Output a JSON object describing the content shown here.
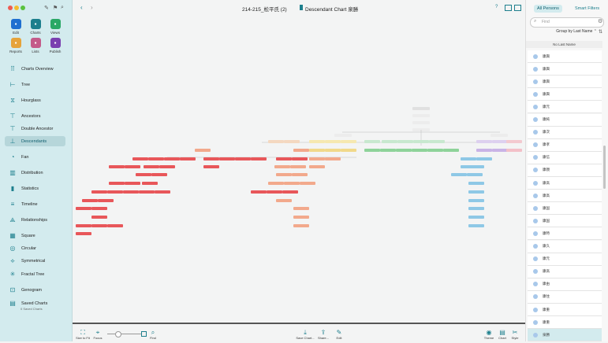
{
  "window": {
    "title": "214-215_松平氏 (2)",
    "chart_title": "Descendant Chart 泉勝"
  },
  "toolbar": [
    {
      "label": "Edit",
      "icon": "pencil-icon",
      "color": "#1f6fd0"
    },
    {
      "label": "Charts",
      "icon": "charts-icon",
      "color": "#1d7f8d"
    },
    {
      "label": "Views",
      "icon": "eye-icon",
      "color": "#2aa866"
    },
    {
      "label": "Reports",
      "icon": "reports-icon",
      "color": "#e6a33a"
    },
    {
      "label": "Lists",
      "icon": "lists-icon",
      "color": "#c45b8a"
    },
    {
      "label": "Publish",
      "icon": "publish-icon",
      "color": "#7a3fb0"
    }
  ],
  "nav": [
    {
      "label": "Charts Overview",
      "icon": "grid-icon"
    },
    {
      "label": "Tree",
      "icon": "tree-icon"
    },
    {
      "label": "Hourglass",
      "icon": "hourglass-icon"
    },
    {
      "label": "Ancestors",
      "icon": "ancestors-icon"
    },
    {
      "label": "Double Ancestor",
      "icon": "double-ancestor-icon"
    },
    {
      "label": "Descendants",
      "icon": "descendants-icon",
      "selected": true
    },
    {
      "label": "Fan",
      "icon": "fan-icon"
    },
    {
      "label": "Distribution",
      "icon": "distribution-icon"
    },
    {
      "label": "Statistics",
      "icon": "statistics-icon"
    },
    {
      "label": "Timeline",
      "icon": "timeline-icon"
    },
    {
      "label": "Relationships",
      "icon": "relationships-icon"
    },
    {
      "label": "Square",
      "icon": "square-icon"
    },
    {
      "label": "Circular",
      "icon": "circular-icon"
    },
    {
      "label": "Symmetrical",
      "icon": "symmetrical-icon"
    },
    {
      "label": "Fractal Tree",
      "icon": "fractal-tree-icon"
    },
    {
      "label": "Genogram",
      "icon": "genogram-icon"
    },
    {
      "label": "Saved Charts",
      "icon": "saved-charts-icon",
      "sub": "0 Saved Charts"
    }
  ],
  "bottom_tools": [
    {
      "label": "Size to Fit",
      "icon": "size-to-fit-icon"
    },
    {
      "label": "Focus",
      "icon": "focus-icon"
    },
    {
      "label": "Find",
      "icon": "find-icon"
    },
    {
      "label": "Save Chart...",
      "icon": "save-chart-icon"
    },
    {
      "label": "Share...",
      "icon": "share-icon"
    },
    {
      "label": "Edit",
      "icon": "edit-icon"
    },
    {
      "label": "Theme",
      "icon": "theme-icon"
    },
    {
      "label": "Chart",
      "icon": "chart-icon"
    },
    {
      "label": "Style",
      "icon": "style-icon"
    }
  ],
  "right_panel": {
    "tabs": [
      "All Persons",
      "Smart Filters"
    ],
    "search_placeholder": "Find",
    "group_by": "Group by Last Name",
    "section": "No Last Name",
    "persons": [
      "康興",
      "康興",
      "康興",
      "康興",
      "康元",
      "康純",
      "康次",
      "康孝",
      "康信",
      "康親",
      "康高",
      "康高",
      "康国",
      "康国",
      "康時",
      "康久",
      "康元",
      "康高",
      "康由",
      "康住",
      "康重",
      "康重",
      "泉勝"
    ]
  },
  "colors": {
    "accent": "#1d7f8d",
    "sidebar_bg": "#d3ebee",
    "red": "#e8575a",
    "green": "#8ed39a",
    "blue": "#8ec8e6",
    "purple": "#c9b3e6",
    "orange": "#f2a98c",
    "yellow": "#f1d98a"
  }
}
